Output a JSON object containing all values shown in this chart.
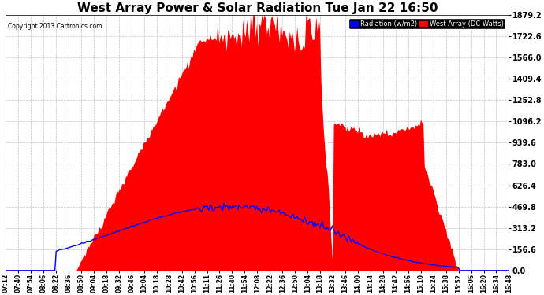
{
  "title": "West Array Power & Solar Radiation Tue Jan 22 16:50",
  "copyright": "Copyright 2013 Cartronics.com",
  "legend_items": [
    "Radiation (w/m2)",
    "West Array (DC Watts)"
  ],
  "legend_colors": [
    "#0000ff",
    "#ff0000"
  ],
  "y_max": 1879.2,
  "y_ticks": [
    0.0,
    156.6,
    313.2,
    469.8,
    626.4,
    783.0,
    939.6,
    1096.2,
    1252.8,
    1409.4,
    1566.0,
    1722.6,
    1879.2
  ],
  "background_color": "#ffffff",
  "plot_bg_color": "#ffffff",
  "grid_color": "#bbbbbb",
  "radiation_color": "#0000ff",
  "power_color": "#ff0000",
  "title_fontsize": 11,
  "x_tick_labels": [
    "07:12",
    "07:40",
    "07:54",
    "08:06",
    "08:22",
    "08:36",
    "08:50",
    "09:04",
    "09:18",
    "09:32",
    "09:46",
    "10:04",
    "10:18",
    "10:28",
    "10:42",
    "10:56",
    "11:11",
    "11:26",
    "11:40",
    "11:54",
    "12:08",
    "12:22",
    "12:36",
    "12:50",
    "13:04",
    "13:18",
    "13:32",
    "13:46",
    "14:00",
    "14:14",
    "14:28",
    "14:42",
    "14:56",
    "15:10",
    "15:24",
    "15:38",
    "15:52",
    "16:06",
    "16:20",
    "16:34",
    "16:48"
  ]
}
